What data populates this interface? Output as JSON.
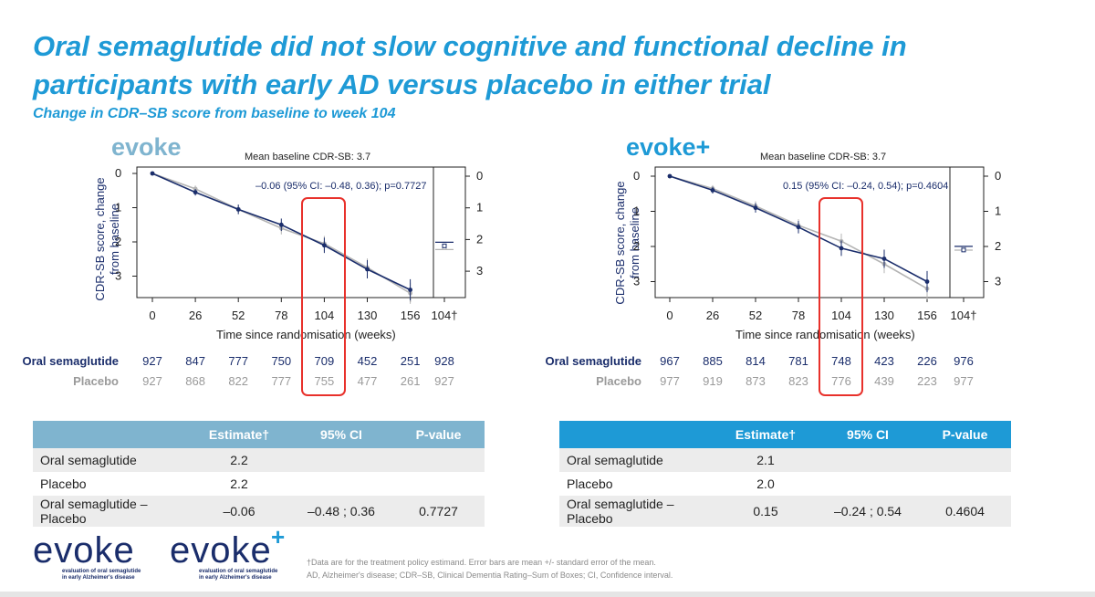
{
  "header": {
    "title": "Oral semaglutide did not slow cognitive and functional decline in participants with early AD versus placebo in either trial",
    "subtitle": "Change in CDR–SB score from baseline to week 104"
  },
  "colors": {
    "semaglutide": "#1a2d6b",
    "placebo": "#b4b4b4",
    "highlight": "#e8312b",
    "evoke_header": "#7fb4cf",
    "evokeplus_header": "#1e9ad6"
  },
  "chart_data": [
    {
      "type": "line",
      "trial": "evoke",
      "baseline_note": "Mean baseline CDR-SB: 3.7",
      "annotation": "–0.06 (95% CI: –0.48, 0.36); p=0.7727",
      "xlabel": "Time since randomisation (weeks)",
      "ylabel": "CDR-SB score, change from baseline",
      "x": [
        0,
        26,
        52,
        78,
        104,
        130,
        156
      ],
      "x_tick_labels": [
        "0",
        "26",
        "52",
        "78",
        "104",
        "130",
        "156",
        "104†"
      ],
      "y_tick_labels": [
        "0",
        "1",
        "2",
        "3"
      ],
      "ylim": [
        0,
        3.6
      ],
      "y_inverted": true,
      "series": [
        {
          "name": "Oral semaglutide",
          "values": [
            0,
            0.55,
            1.05,
            1.5,
            2.1,
            2.8,
            3.4
          ],
          "end_estimate": 2.2
        },
        {
          "name": "Placebo",
          "values": [
            0,
            0.45,
            1.05,
            1.6,
            2.05,
            2.75,
            3.5
          ],
          "end_estimate": 2.2
        }
      ],
      "n_at_risk": {
        "Oral semaglutide": [
          "927",
          "847",
          "777",
          "750",
          "709",
          "452",
          "251",
          "928"
        ],
        "Placebo": [
          "927",
          "868",
          "822",
          "777",
          "755",
          "477",
          "261",
          "927"
        ]
      }
    },
    {
      "type": "line",
      "trial": "evoke+",
      "baseline_note": "Mean baseline CDR-SB: 3.7",
      "annotation": "0.15 (95% CI: –0.24, 0.54); p=0.4604",
      "xlabel": "Time since randomisation (weeks)",
      "ylabel": "CDR-SB score, change from baseline",
      "x": [
        0,
        26,
        52,
        78,
        104,
        130,
        156
      ],
      "x_tick_labels": [
        "0",
        "26",
        "52",
        "78",
        "104",
        "130",
        "156",
        "104†"
      ],
      "y_tick_labels": [
        "0",
        "1",
        "2",
        "3"
      ],
      "ylim": [
        0,
        3.4
      ],
      "y_inverted": true,
      "series": [
        {
          "name": "Oral semaglutide",
          "values": [
            0,
            0.4,
            0.9,
            1.45,
            2.05,
            2.35,
            3.0
          ],
          "end_estimate": 2.1
        },
        {
          "name": "Placebo",
          "values": [
            0,
            0.35,
            0.85,
            1.4,
            1.85,
            2.5,
            3.2
          ],
          "end_estimate": 2.0
        }
      ],
      "n_at_risk": {
        "Oral semaglutide": [
          "967",
          "885",
          "814",
          "781",
          "748",
          "423",
          "226",
          "976"
        ],
        "Placebo": [
          "977",
          "919",
          "873",
          "823",
          "776",
          "439",
          "223",
          "977"
        ]
      }
    }
  ],
  "labels": {
    "semaglutide": "Oral semaglutide",
    "placebo": "Placebo",
    "evoke": "evoke",
    "evokeplus": "evoke+"
  },
  "tables": [
    {
      "headers": [
        "",
        "Estimate†",
        "95% CI",
        "P-value"
      ],
      "rows": [
        [
          "Oral semaglutide",
          "2.2",
          "",
          ""
        ],
        [
          "Placebo",
          "2.2",
          "",
          ""
        ],
        [
          "Oral semaglutide – Placebo",
          "–0.06",
          "–0.48 ; 0.36",
          "0.7727"
        ]
      ]
    },
    {
      "headers": [
        "",
        "Estimate†",
        "95% CI",
        "P-value"
      ],
      "rows": [
        [
          "Oral semaglutide",
          "2.1",
          "",
          ""
        ],
        [
          "Placebo",
          "2.0",
          "",
          ""
        ],
        [
          "Oral semaglutide – Placebo",
          "0.15",
          "–0.24 ; 0.54",
          "0.4604"
        ]
      ]
    }
  ],
  "logos": [
    {
      "word": "evoke",
      "tagline1": "evaluation of oral semaglutide",
      "tagline2": "in early Alzheimer's disease"
    },
    {
      "word": "evoke",
      "plus": "+",
      "tagline1": "evaluation of oral semaglutide",
      "tagline2": "in early Alzheimer's disease"
    }
  ],
  "footnote": {
    "line1": "†Data are for the treatment policy estimand. Error bars are mean +/- standard error of the mean.",
    "line2": "AD, Alzheimer's disease; CDR–SB, Clinical Dementia Rating–Sum of Boxes; CI, Confidence interval."
  }
}
